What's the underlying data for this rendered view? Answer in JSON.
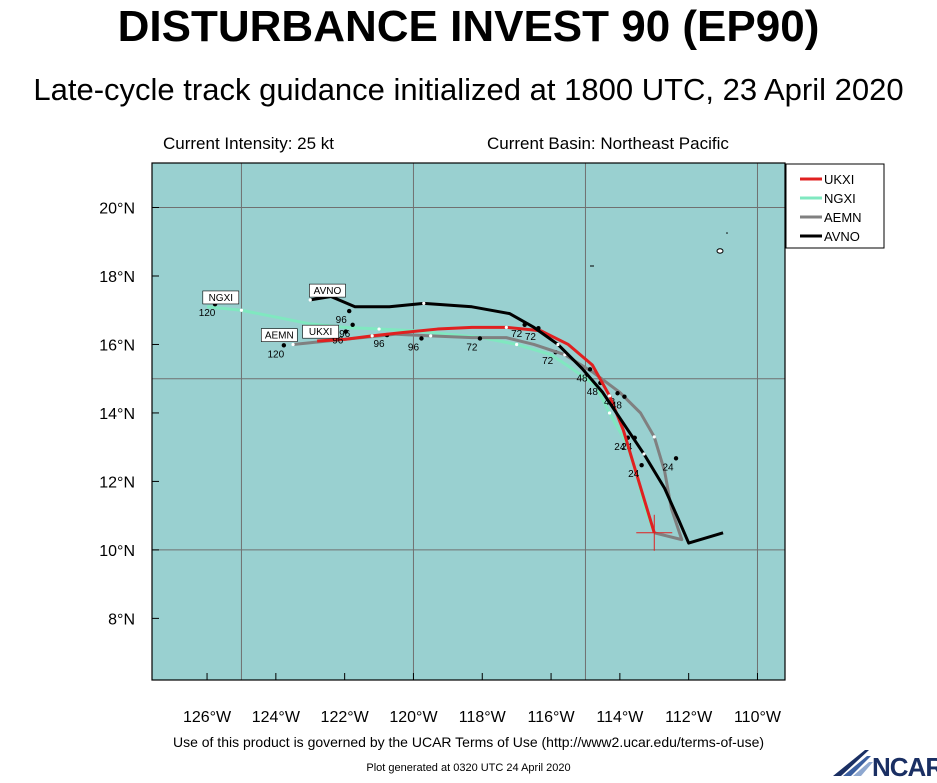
{
  "header": {
    "title": "DISTURBANCE INVEST 90 (EP90)",
    "subtitle": "Late-cycle track guidance initialized at 1800 UTC, 23 April 2020",
    "intensity": "Current Intensity: 25 kt",
    "basin": "Current Basin: Northeast Pacific"
  },
  "footer": {
    "terms": "Use of this product is governed by the UCAR Terms of Use (http://www2.ucar.edu/terms-of-use)",
    "generated": "Plot generated at 0320 UTC   24 April 2020",
    "logo_text": "NCAR"
  },
  "map": {
    "lon_range": [
      -127.6,
      -109.2
    ],
    "lat_range": [
      6.2,
      21.3
    ],
    "ocean_color": "#99d0d0",
    "grid_lons": [
      -125,
      -120,
      -115,
      -110
    ],
    "grid_lats": [
      10,
      15,
      20
    ],
    "lon_ticks": [
      -126,
      -124,
      -122,
      -120,
      -118,
      -116,
      -114,
      -112,
      -110
    ],
    "lon_tick_labels": [
      "126°W",
      "124°W",
      "122°W",
      "120°W",
      "118°W",
      "116°W",
      "114°W",
      "112°W",
      "110°W"
    ],
    "lat_ticks": [
      8,
      10,
      12,
      14,
      16,
      18,
      20
    ],
    "lat_tick_labels": [
      "8°N",
      "10°N",
      "12°N",
      "14°N",
      "16°N",
      "18°N",
      "20°N"
    ],
    "current_position": {
      "lon": -113.0,
      "lat": 10.5
    }
  },
  "legend": [
    {
      "name": "UKXI",
      "color": "#e02020"
    },
    {
      "name": "NGXI",
      "color": "#80e8c0"
    },
    {
      "name": "AEMN",
      "color": "#808080"
    },
    {
      "name": "AVNO",
      "color": "#000000"
    }
  ],
  "tracks": [
    {
      "model": "NGXI",
      "color": "#80e8c0",
      "points": [
        [
          -113.0,
          10.5
        ],
        [
          -113.3,
          11.3
        ],
        [
          -113.5,
          12.2
        ],
        [
          -113.8,
          13.1
        ],
        [
          -114.3,
          14.0
        ],
        [
          -114.7,
          14.8
        ],
        [
          -115.4,
          15.3
        ],
        [
          -116.0,
          15.7
        ],
        [
          -117.0,
          16.0
        ],
        [
          -118.0,
          16.2
        ],
        [
          -119.0,
          16.3
        ],
        [
          -120.0,
          16.4
        ],
        [
          -121.0,
          16.45
        ],
        [
          -122.0,
          16.5
        ],
        [
          -123.0,
          16.6
        ],
        [
          -124.0,
          16.8
        ],
        [
          -125.0,
          17.0
        ],
        [
          -126.0,
          17.1
        ]
      ],
      "labels": [
        {
          "text": "24",
          "lon": -114.0,
          "lat": 13.1
        },
        {
          "text": "48",
          "lon": -114.8,
          "lat": 14.7
        },
        {
          "text": "72",
          "lon": -116.1,
          "lat": 15.6
        },
        {
          "text": "96",
          "lon": -122.0,
          "lat": 16.4
        },
        {
          "text": "120",
          "lon": -126.0,
          "lat": 17.0
        }
      ],
      "boxlabel": {
        "text": "NGXI",
        "lon": -125.6,
        "lat": 17.3
      }
    },
    {
      "model": "AEMN",
      "color": "#808080",
      "points": [
        [
          -113.0,
          10.5
        ],
        [
          -112.2,
          10.3
        ],
        [
          -112.5,
          11.2
        ],
        [
          -112.7,
          12.3
        ],
        [
          -113.0,
          13.3
        ],
        [
          -113.4,
          14.0
        ],
        [
          -114.0,
          14.6
        ],
        [
          -114.8,
          15.2
        ],
        [
          -115.6,
          15.7
        ],
        [
          -116.5,
          16.0
        ],
        [
          -117.3,
          16.2
        ],
        [
          -118.3,
          16.2
        ],
        [
          -119.5,
          16.25
        ],
        [
          -120.5,
          16.3
        ],
        [
          -121.5,
          16.2
        ],
        [
          -122.5,
          16.1
        ],
        [
          -123.5,
          16.0
        ]
      ],
      "labels": [
        {
          "text": "24",
          "lon": -113.8,
          "lat": 13.1
        },
        {
          "text": "48",
          "lon": -114.3,
          "lat": 14.4
        },
        {
          "text": "72",
          "lon": -118.3,
          "lat": 16.0
        },
        {
          "text": "96",
          "lon": -121.0,
          "lat": 16.1
        },
        {
          "text": "120",
          "lon": -124.0,
          "lat": 15.8
        }
      ],
      "boxlabel": {
        "text": "AEMN",
        "lon": -123.9,
        "lat": 16.2
      }
    },
    {
      "model": "UKXI",
      "color": "#e02020",
      "points": [
        [
          -113.0,
          10.5
        ],
        [
          -113.3,
          11.5
        ],
        [
          -113.6,
          12.5
        ],
        [
          -113.9,
          13.5
        ],
        [
          -114.3,
          14.5
        ],
        [
          -114.8,
          15.4
        ],
        [
          -115.5,
          16.0
        ],
        [
          -116.3,
          16.4
        ],
        [
          -117.3,
          16.5
        ],
        [
          -118.3,
          16.5
        ],
        [
          -119.3,
          16.45
        ],
        [
          -120.3,
          16.35
        ],
        [
          -121.2,
          16.25
        ],
        [
          -122.0,
          16.15
        ],
        [
          -122.8,
          16.1
        ]
      ],
      "labels": [
        {
          "text": "24",
          "lon": -113.6,
          "lat": 12.3
        },
        {
          "text": "48",
          "lon": -114.1,
          "lat": 14.3
        },
        {
          "text": "72",
          "lon": -116.6,
          "lat": 16.3
        },
        {
          "text": "96",
          "lon": -122.2,
          "lat": 16.2
        }
      ],
      "boxlabel": {
        "text": "UKXI",
        "lon": -122.7,
        "lat": 16.3
      }
    },
    {
      "model": "AVNO",
      "color": "#000000",
      "points": [
        [
          -111.0,
          10.5
        ],
        [
          -112.0,
          10.2
        ],
        [
          -112.3,
          10.9
        ],
        [
          -112.7,
          11.8
        ],
        [
          -113.3,
          12.8
        ],
        [
          -113.9,
          13.7
        ],
        [
          -114.5,
          14.6
        ],
        [
          -115.1,
          15.3
        ],
        [
          -115.8,
          16.0
        ],
        [
          -116.5,
          16.5
        ],
        [
          -117.2,
          16.9
        ],
        [
          -118.3,
          17.1
        ],
        [
          -119.7,
          17.2
        ],
        [
          -120.7,
          17.1
        ],
        [
          -121.7,
          17.1
        ],
        [
          -122.4,
          17.4
        ],
        [
          -123.0,
          17.3
        ]
      ],
      "labels": [
        {
          "text": "24",
          "lon": -112.6,
          "lat": 12.5
        },
        {
          "text": "48",
          "lon": -115.1,
          "lat": 15.1
        },
        {
          "text": "72",
          "lon": -117.0,
          "lat": 16.4
        },
        {
          "text": "96",
          "lon": -120.0,
          "lat": 16.0
        },
        {
          "text": "96",
          "lon": -122.1,
          "lat": 16.8
        }
      ],
      "boxlabel": {
        "text": "AVNO",
        "lon": -122.5,
        "lat": 17.5
      }
    }
  ]
}
